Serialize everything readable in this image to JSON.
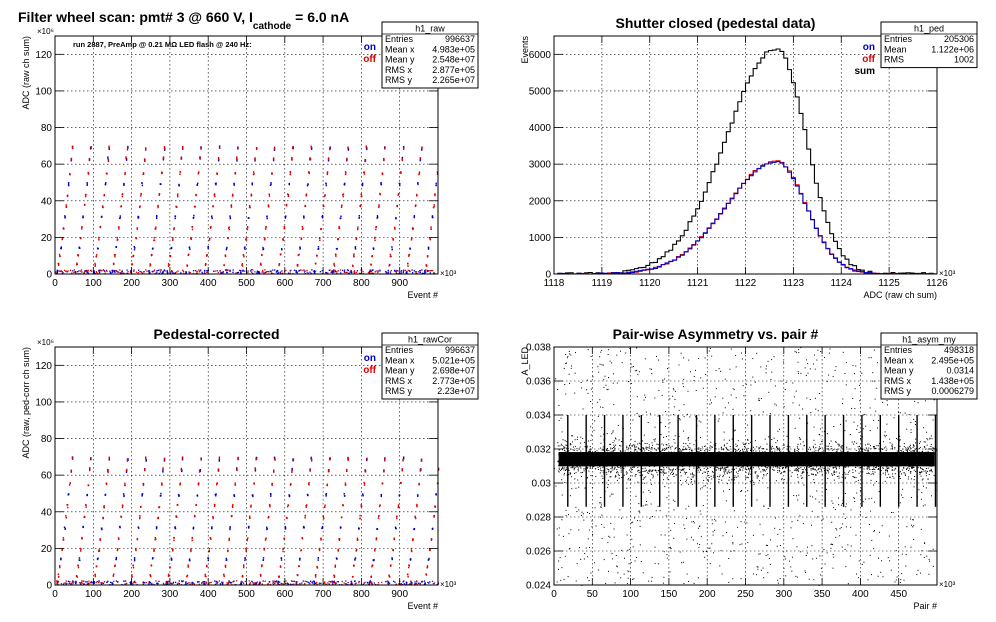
{
  "main_title": {
    "prefix": "Filter wheel scan: pmt#   3 @   660 V, I",
    "subscript": "cathode",
    "suffix": " = 6.0 nA"
  },
  "chart_data": [
    {
      "id": "raw",
      "type": "scatter",
      "title": "",
      "ylabel": "ADC (raw ch sum)",
      "xlabel": "Event #",
      "x_exponent": "×10³",
      "y_exponent": "×10⁶",
      "annotation": "run 2887, PreAmp @ 0.21 MΩ  LED flash @  240 Hz:",
      "xlim": [
        0,
        1000
      ],
      "ylim": [
        0,
        130
      ],
      "x_ticks": [
        0,
        100,
        200,
        300,
        400,
        500,
        600,
        700,
        800,
        900
      ],
      "y_ticks": [
        0,
        20,
        40,
        60,
        80,
        100,
        120
      ],
      "legend": [
        "on",
        "off"
      ],
      "legend_colors": [
        "#0000cc",
        "#dd0000"
      ],
      "stats_box": {
        "name": "h1_raw",
        "rows": [
          [
            "Entries",
            "996637"
          ],
          [
            "Mean x",
            "4.983e+05"
          ],
          [
            "Mean y",
            "2.548e+07"
          ],
          [
            "RMS x",
            "2.877e+05"
          ],
          [
            "RMS y",
            "2.265e+07"
          ]
        ]
      },
      "level_values": [
        1,
        5,
        10,
        14,
        19,
        25,
        31,
        37,
        43,
        49,
        55,
        63,
        69
      ],
      "period": 48,
      "grid": true
    },
    {
      "id": "ped",
      "type": "line",
      "title": "Shutter closed (pedestal data)",
      "ylabel": "Events",
      "xlabel": "ADC (raw ch sum)",
      "x_exponent": "×10³",
      "xlim": [
        1118,
        1126
      ],
      "ylim": [
        0,
        6500
      ],
      "x_ticks": [
        1118,
        1119,
        1120,
        1121,
        1122,
        1123,
        1124,
        1125,
        1126
      ],
      "y_ticks": [
        0,
        1000,
        2000,
        3000,
        4000,
        5000,
        6000
      ],
      "legend": [
        "on",
        "off",
        "sum"
      ],
      "legend_colors": [
        "#0000cc",
        "#dd0000",
        "#000000"
      ],
      "stats_box": {
        "name": "h1_ped",
        "rows": [
          [
            "Entries",
            "205306"
          ],
          [
            "Mean",
            "1.122e+06"
          ],
          [
            "RMS",
            "1002"
          ]
        ]
      },
      "series": [
        {
          "name": "sum",
          "color": "#000000",
          "peak": 6150,
          "center": 1122.65,
          "sigma_left": 1.05,
          "sigma_right": 0.62
        },
        {
          "name": "off",
          "color": "#dd0000",
          "peak": 3080,
          "center": 1122.65,
          "sigma_left": 1.05,
          "sigma_right": 0.62
        },
        {
          "name": "on",
          "color": "#0000cc",
          "peak": 3060,
          "center": 1122.65,
          "sigma_left": 1.05,
          "sigma_right": 0.62
        }
      ],
      "grid": true
    },
    {
      "id": "rawCor",
      "type": "scatter",
      "title": "Pedestal-corrected",
      "ylabel": "ADC (raw, ped-corr ch sum)",
      "xlabel": "Event #",
      "x_exponent": "×10³",
      "y_exponent": "×10⁶",
      "xlim": [
        0,
        1000
      ],
      "ylim": [
        0,
        130
      ],
      "x_ticks": [
        0,
        100,
        200,
        300,
        400,
        500,
        600,
        700,
        800,
        900
      ],
      "y_ticks": [
        0,
        20,
        40,
        60,
        80,
        100,
        120
      ],
      "legend": [
        "on",
        "off"
      ],
      "legend_colors": [
        "#0000cc",
        "#dd0000"
      ],
      "stats_box": {
        "name": "h1_rawCor",
        "rows": [
          [
            "Entries",
            "996637"
          ],
          [
            "Mean x",
            "5.021e+05"
          ],
          [
            "Mean y",
            "2.698e+07"
          ],
          [
            "RMS x",
            "2.773e+05"
          ],
          [
            "RMS y",
            "2.23e+07"
          ]
        ]
      },
      "level_values": [
        1,
        5,
        10,
        14,
        19,
        25,
        31,
        37,
        43,
        49,
        55,
        63,
        69
      ],
      "period": 48,
      "grid": true
    },
    {
      "id": "asym",
      "type": "scatter",
      "title": "Pair-wise Asymmetry vs. pair #",
      "ylabel": "A_LED",
      "xlabel": "Pair #",
      "x_exponent": "×10³",
      "xlim": [
        0,
        500
      ],
      "ylim": [
        0.024,
        0.038
      ],
      "x_ticks": [
        0,
        50,
        100,
        150,
        200,
        250,
        300,
        350,
        400,
        450
      ],
      "y_ticks": [
        0.024,
        0.026,
        0.028,
        0.03,
        0.032,
        0.034,
        0.036,
        0.038
      ],
      "y_tick_labels": [
        "0.024",
        "0.026",
        "0.028",
        "0.03",
        "0.032",
        "0.034",
        "0.036",
        "0.038"
      ],
      "stats_box": {
        "name": "h1_asym_my",
        "rows": [
          [
            "Entries",
            "498318"
          ],
          [
            "Mean x",
            "2.495e+05"
          ],
          [
            "Mean y",
            "0.0314"
          ],
          [
            "RMS x",
            "1.438e+05"
          ],
          [
            "RMS y",
            "0.0006279"
          ]
        ]
      },
      "band_center": 0.0314,
      "band_halfwidth": 0.0007,
      "period": 24,
      "grid": true
    }
  ]
}
